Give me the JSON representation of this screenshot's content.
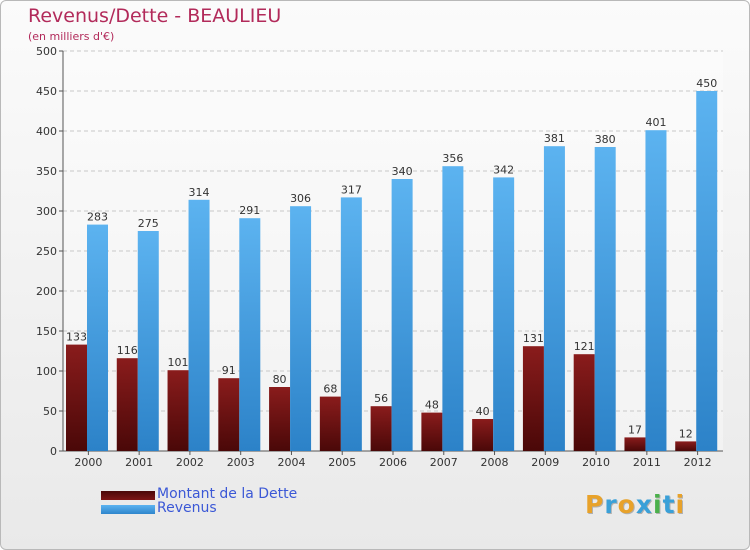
{
  "title": "Revenus/Dette - BEAULIEU",
  "subtitle": "(en milliers d'€)",
  "colors": {
    "title": "#b22a5a",
    "dette": "#7d1515",
    "revenus": "#4aa3e6",
    "legend_text": "#3b58d6"
  },
  "legend": [
    {
      "label": "Montant de la Dette",
      "color": "#7d1515"
    },
    {
      "label": "Revenus",
      "color": "#4aa3e6"
    }
  ],
  "logo": {
    "letters": [
      "P",
      "r",
      "o",
      "x",
      "i",
      "t",
      "i"
    ],
    "colors": [
      "#e8a22a",
      "#3aa0d8",
      "#e8a22a",
      "#3aa0d8",
      "#4bb04b",
      "#3aa0d8",
      "#e8a22a"
    ]
  },
  "chart_data": {
    "type": "bar",
    "categories": [
      "2000",
      "2001",
      "2002",
      "2003",
      "2004",
      "2005",
      "2006",
      "2007",
      "2008",
      "2009",
      "2010",
      "2011",
      "2012"
    ],
    "series": [
      {
        "name": "Montant de la Dette",
        "values": [
          133,
          116,
          101,
          91,
          80,
          68,
          56,
          48,
          40,
          131,
          121,
          17,
          12
        ]
      },
      {
        "name": "Revenus",
        "values": [
          283,
          275,
          314,
          291,
          306,
          317,
          340,
          356,
          342,
          381,
          380,
          401,
          450
        ]
      }
    ],
    "yticks": [
      0,
      50,
      100,
      150,
      200,
      250,
      300,
      350,
      400,
      450,
      500
    ],
    "ylim": [
      0,
      500
    ],
    "grid": true,
    "legend_position": "bottom-left"
  }
}
